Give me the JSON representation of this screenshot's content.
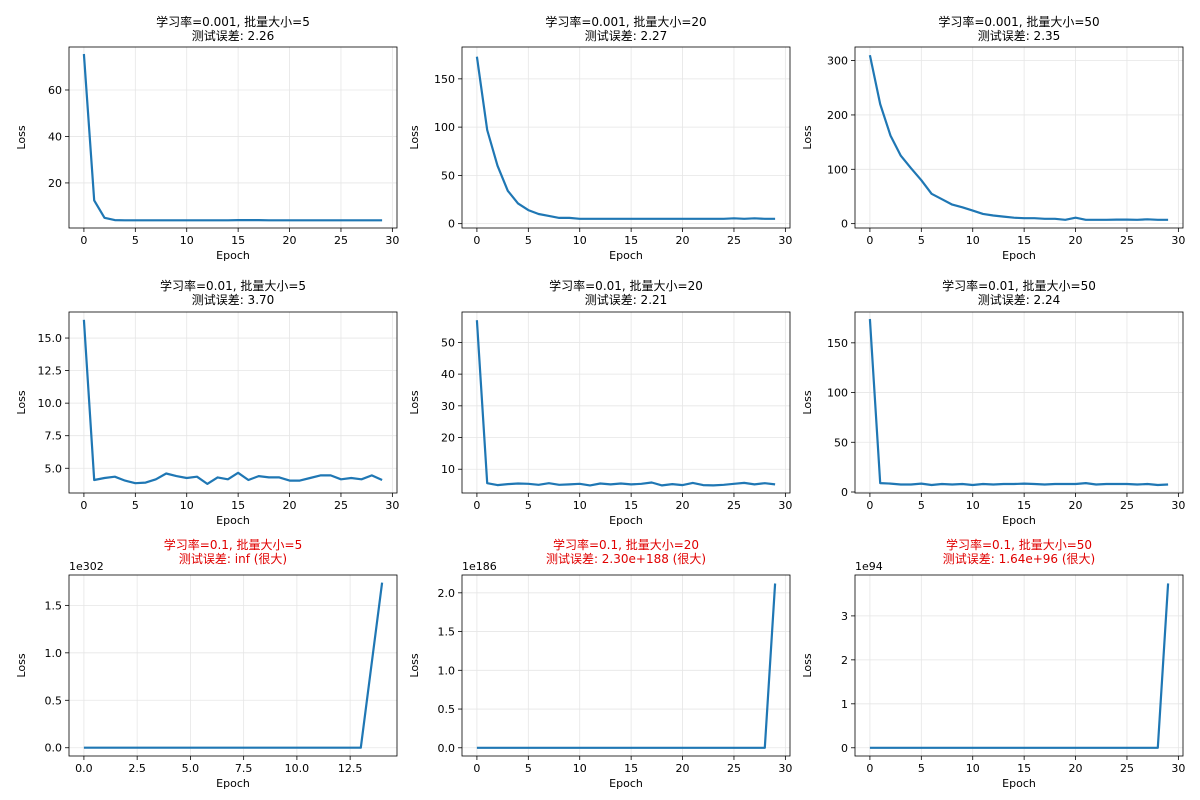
{
  "colors": {
    "line": "#1f77b4",
    "grid": "#e6e6e6",
    "axis": "#000000",
    "warn": "#e00000"
  },
  "chart_data": [
    {
      "type": "line",
      "title": "学习率=0.001, 批量大小=5",
      "subtitle": "测试误差: 2.26",
      "warn": false,
      "xlabel": "Epoch",
      "ylabel": "Loss",
      "xlim": [
        -1.45,
        30.45
      ],
      "ylim": [
        0.6,
        78.5
      ],
      "xticks": [
        0,
        5,
        10,
        15,
        20,
        25,
        30
      ],
      "xtick_labels": [
        "0",
        "5",
        "10",
        "15",
        "20",
        "25",
        "30"
      ],
      "yticks": [
        20,
        40,
        60
      ],
      "ytick_labels": [
        "20",
        "40",
        "60"
      ],
      "offset": "",
      "grid": true,
      "x": [
        0,
        1,
        2,
        3,
        4,
        5,
        6,
        7,
        8,
        9,
        10,
        11,
        12,
        13,
        14,
        15,
        16,
        17,
        18,
        19,
        20,
        21,
        22,
        23,
        24,
        25,
        26,
        27,
        28,
        29
      ],
      "y": [
        75.5,
        12.5,
        5.0,
        4.0,
        3.9,
        3.9,
        3.9,
        3.9,
        3.9,
        3.9,
        3.9,
        3.9,
        3.9,
        3.9,
        3.9,
        4.0,
        4.0,
        4.0,
        3.9,
        3.9,
        3.9,
        3.9,
        3.9,
        3.9,
        3.9,
        3.9,
        3.9,
        3.9,
        3.9,
        3.9
      ]
    },
    {
      "type": "line",
      "title": "学习率=0.001, 批量大小=20",
      "subtitle": "测试误差: 2.27",
      "warn": false,
      "xlabel": "Epoch",
      "ylabel": "Loss",
      "xlim": [
        -1.45,
        30.45
      ],
      "ylim": [
        -4.5,
        183
      ],
      "xticks": [
        0,
        5,
        10,
        15,
        20,
        25,
        30
      ],
      "xtick_labels": [
        "0",
        "5",
        "10",
        "15",
        "20",
        "25",
        "30"
      ],
      "yticks": [
        0,
        50,
        100,
        150
      ],
      "ytick_labels": [
        "0",
        "50",
        "100",
        "150"
      ],
      "offset": "",
      "grid": true,
      "x": [
        0,
        1,
        2,
        3,
        4,
        5,
        6,
        7,
        8,
        9,
        10,
        11,
        12,
        13,
        14,
        15,
        16,
        17,
        18,
        19,
        20,
        21,
        22,
        23,
        24,
        25,
        26,
        27,
        28,
        29
      ],
      "y": [
        173,
        97,
        60,
        34,
        21,
        14,
        10,
        8,
        6,
        6,
        5,
        5,
        5,
        5,
        5,
        5,
        5,
        5,
        5,
        5,
        5,
        5,
        5,
        5,
        5,
        5.5,
        5,
        5.5,
        5,
        5
      ]
    },
    {
      "type": "line",
      "title": "学习率=0.001, 批量大小=50",
      "subtitle": "测试误差: 2.35",
      "warn": false,
      "xlabel": "Epoch",
      "ylabel": "Loss",
      "xlim": [
        -1.45,
        30.45
      ],
      "ylim": [
        -8,
        325
      ],
      "xticks": [
        0,
        5,
        10,
        15,
        20,
        25,
        30
      ],
      "xtick_labels": [
        "0",
        "5",
        "10",
        "15",
        "20",
        "25",
        "30"
      ],
      "yticks": [
        0,
        100,
        200,
        300
      ],
      "ytick_labels": [
        "0",
        "100",
        "200",
        "300"
      ],
      "offset": "",
      "grid": true,
      "x": [
        0,
        1,
        2,
        3,
        4,
        5,
        6,
        7,
        8,
        9,
        10,
        11,
        12,
        13,
        14,
        15,
        16,
        17,
        18,
        19,
        20,
        21,
        22,
        23,
        24,
        25,
        26,
        27,
        28,
        29
      ],
      "y": [
        310,
        220,
        162,
        125,
        102,
        80,
        55,
        45,
        35,
        30,
        24,
        18,
        15,
        13,
        11,
        10,
        10,
        9,
        9,
        7,
        11,
        7,
        7,
        7,
        7.5,
        7.5,
        7,
        8,
        7,
        7
      ]
    },
    {
      "type": "line",
      "title": "学习率=0.01, 批量大小=5",
      "subtitle": "测试误差: 3.70",
      "warn": false,
      "xlabel": "Epoch",
      "ylabel": "Loss",
      "xlim": [
        -1.45,
        30.45
      ],
      "ylim": [
        3.1,
        17.0
      ],
      "xticks": [
        0,
        5,
        10,
        15,
        20,
        25,
        30
      ],
      "xtick_labels": [
        "0",
        "5",
        "10",
        "15",
        "20",
        "25",
        "30"
      ],
      "yticks": [
        5,
        7.5,
        10,
        12.5,
        15
      ],
      "ytick_labels": [
        "5.0",
        "7.5",
        "10.0",
        "12.5",
        "15.0"
      ],
      "offset": "",
      "grid": true,
      "x": [
        0,
        1,
        2,
        3,
        4,
        5,
        6,
        7,
        8,
        9,
        10,
        11,
        12,
        13,
        14,
        15,
        16,
        17,
        18,
        19,
        20,
        21,
        22,
        23,
        24,
        25,
        26,
        27,
        28,
        29
      ],
      "y": [
        16.4,
        4.1,
        4.25,
        4.35,
        4.05,
        3.85,
        3.9,
        4.15,
        4.6,
        4.4,
        4.25,
        4.35,
        3.8,
        4.3,
        4.15,
        4.65,
        4.1,
        4.4,
        4.3,
        4.3,
        4.05,
        4.05,
        4.25,
        4.45,
        4.45,
        4.15,
        4.25,
        4.15,
        4.45,
        4.1
      ]
    },
    {
      "type": "line",
      "title": "学习率=0.01, 批量大小=20",
      "subtitle": "测试误差: 2.21",
      "warn": false,
      "xlabel": "Epoch",
      "ylabel": "Loss",
      "xlim": [
        -1.45,
        30.45
      ],
      "ylim": [
        2.5,
        59.6
      ],
      "xticks": [
        0,
        5,
        10,
        15,
        20,
        25,
        30
      ],
      "xtick_labels": [
        "0",
        "5",
        "10",
        "15",
        "20",
        "25",
        "30"
      ],
      "yticks": [
        10,
        20,
        30,
        40,
        50
      ],
      "ytick_labels": [
        "10",
        "20",
        "30",
        "40",
        "50"
      ],
      "offset": "",
      "grid": true,
      "x": [
        0,
        1,
        2,
        3,
        4,
        5,
        6,
        7,
        8,
        9,
        10,
        11,
        12,
        13,
        14,
        15,
        16,
        17,
        18,
        19,
        20,
        21,
        22,
        23,
        24,
        25,
        26,
        27,
        28,
        29
      ],
      "y": [
        57,
        5.6,
        5.0,
        5.3,
        5.5,
        5.4,
        5.1,
        5.6,
        5.1,
        5.2,
        5.4,
        4.9,
        5.5,
        5.2,
        5.5,
        5.2,
        5.4,
        5.8,
        4.9,
        5.3,
        5.0,
        5.7,
        5.0,
        4.9,
        5.1,
        5.4,
        5.7,
        5.2,
        5.6,
        5.2
      ]
    },
    {
      "type": "line",
      "title": "学习率=0.01, 批量大小=50",
      "subtitle": "测试误差: 2.24",
      "warn": false,
      "xlabel": "Epoch",
      "ylabel": "Loss",
      "xlim": [
        -1.45,
        30.45
      ],
      "ylim": [
        -1,
        181
      ],
      "xticks": [
        0,
        5,
        10,
        15,
        20,
        25,
        30
      ],
      "xtick_labels": [
        "0",
        "5",
        "10",
        "15",
        "20",
        "25",
        "30"
      ],
      "yticks": [
        0,
        50,
        100,
        150
      ],
      "ytick_labels": [
        "0",
        "50",
        "100",
        "150"
      ],
      "offset": "",
      "grid": true,
      "x": [
        0,
        1,
        2,
        3,
        4,
        5,
        6,
        7,
        8,
        9,
        10,
        11,
        12,
        13,
        14,
        15,
        16,
        17,
        18,
        19,
        20,
        21,
        22,
        23,
        24,
        25,
        26,
        27,
        28,
        29
      ],
      "y": [
        174,
        9,
        8.5,
        7.5,
        7.5,
        8.5,
        7,
        8,
        7.5,
        8,
        7,
        8,
        7.5,
        8,
        8,
        8.5,
        8,
        7.5,
        8,
        8,
        8,
        9,
        7.5,
        8,
        8,
        8,
        7.5,
        8,
        7,
        7.5
      ]
    },
    {
      "type": "line",
      "title": "学习率=0.1, 批量大小=5",
      "subtitle": "测试误差: inf (很大)",
      "warn": true,
      "xlabel": "Epoch",
      "ylabel": "Loss",
      "xlim": [
        -0.7,
        14.7
      ],
      "ylim": [
        -0.087,
        1.82
      ],
      "xticks": [
        0,
        2.5,
        5,
        7.5,
        10,
        12.5
      ],
      "xtick_labels": [
        "0.0",
        "2.5",
        "5.0",
        "7.5",
        "10.0",
        "12.5"
      ],
      "yticks": [
        0,
        0.5,
        1.0,
        1.5
      ],
      "ytick_labels": [
        "0.0",
        "0.5",
        "1.0",
        "1.5"
      ],
      "offset": "1e302",
      "grid": true,
      "x": [
        0,
        1,
        2,
        3,
        4,
        5,
        6,
        7,
        8,
        9,
        10,
        11,
        12,
        13,
        14
      ],
      "y": [
        0,
        0,
        0,
        0,
        0,
        0,
        0,
        0,
        0,
        0,
        0,
        0,
        0,
        0,
        1.74
      ]
    },
    {
      "type": "line",
      "title": "学习率=0.1, 批量大小=20",
      "subtitle": "测试误差: 2.30e+188 (很大)",
      "warn": true,
      "xlabel": "Epoch",
      "ylabel": "Loss",
      "xlim": [
        -1.45,
        30.45
      ],
      "ylim": [
        -0.106,
        2.23
      ],
      "xticks": [
        0,
        5,
        10,
        15,
        20,
        25,
        30
      ],
      "xtick_labels": [
        "0",
        "5",
        "10",
        "15",
        "20",
        "25",
        "30"
      ],
      "yticks": [
        0,
        0.5,
        1.0,
        1.5,
        2.0
      ],
      "ytick_labels": [
        "0.0",
        "0.5",
        "1.0",
        "1.5",
        "2.0"
      ],
      "offset": "1e186",
      "grid": true,
      "x": [
        0,
        1,
        2,
        3,
        4,
        5,
        6,
        7,
        8,
        9,
        10,
        11,
        12,
        13,
        14,
        15,
        16,
        17,
        18,
        19,
        20,
        21,
        22,
        23,
        24,
        25,
        26,
        27,
        28,
        29
      ],
      "y": [
        0,
        0,
        0,
        0,
        0,
        0,
        0,
        0,
        0,
        0,
        0,
        0,
        0,
        0,
        0,
        0,
        0,
        0,
        0,
        0,
        0,
        0,
        0,
        0,
        0,
        0,
        0,
        0,
        0,
        2.12
      ]
    },
    {
      "type": "line",
      "title": "学习率=0.1, 批量大小=50",
      "subtitle": "测试误差: 1.64e+96 (很大)",
      "warn": true,
      "xlabel": "Epoch",
      "ylabel": "Loss",
      "xlim": [
        -1.45,
        30.45
      ],
      "ylim": [
        -0.187,
        3.93
      ],
      "xticks": [
        0,
        5,
        10,
        15,
        20,
        25,
        30
      ],
      "xtick_labels": [
        "0",
        "5",
        "10",
        "15",
        "20",
        "25",
        "30"
      ],
      "yticks": [
        0,
        1,
        2,
        3
      ],
      "ytick_labels": [
        "0",
        "1",
        "2",
        "3"
      ],
      "offset": "1e94",
      "grid": true,
      "x": [
        0,
        1,
        2,
        3,
        4,
        5,
        6,
        7,
        8,
        9,
        10,
        11,
        12,
        13,
        14,
        15,
        16,
        17,
        18,
        19,
        20,
        21,
        22,
        23,
        24,
        25,
        26,
        27,
        28,
        29
      ],
      "y": [
        0,
        0,
        0,
        0,
        0,
        0,
        0,
        0,
        0,
        0,
        0,
        0,
        0,
        0,
        0,
        0,
        0,
        0,
        0,
        0,
        0,
        0,
        0,
        0,
        0,
        0,
        0,
        0,
        0,
        3.74
      ]
    }
  ]
}
